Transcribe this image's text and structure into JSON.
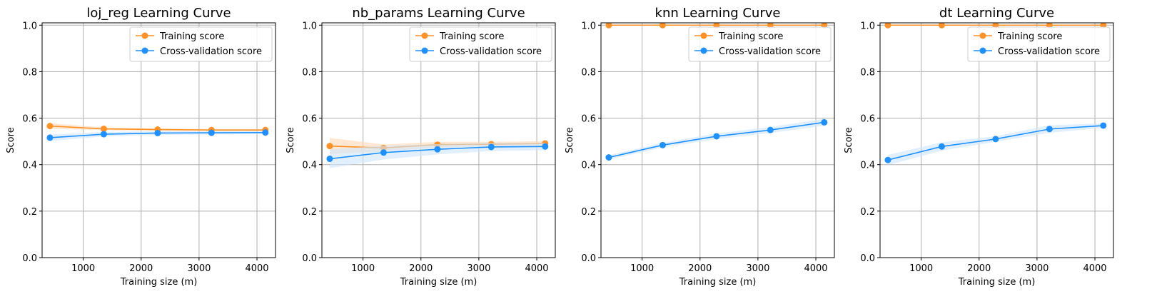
{
  "colors": {
    "training": "#ff9126",
    "cv": "#1e90ff",
    "training_band": "#ffd9b3",
    "cv_band": "#cfe6fb",
    "grid": "#b0b0b0"
  },
  "chart_data": [
    {
      "type": "line",
      "title": "loj_reg Learning Curve",
      "xlabel": "Training size (m)",
      "ylabel": "Score",
      "xlim": [
        290,
        4320
      ],
      "ylim": [
        0.0,
        1.01
      ],
      "xticks": [
        1000,
        2000,
        3000,
        4000
      ],
      "yticks": [
        0.0,
        0.2,
        0.4,
        0.6,
        0.8,
        1.0
      ],
      "yticklabels": [
        "0.0",
        "0.2",
        "0.4",
        "0.6",
        "0.8",
        "1.0"
      ],
      "grid": true,
      "legend": "top-right",
      "x": [
        425,
        1355,
        2285,
        3215,
        4145
      ],
      "series": [
        {
          "name": "Training score",
          "values": [
            0.566,
            0.554,
            0.551,
            0.549,
            0.549
          ],
          "std": [
            0.012,
            0.006,
            0.005,
            0.004,
            0.004
          ]
        },
        {
          "name": "Cross-validation score",
          "values": [
            0.516,
            0.531,
            0.536,
            0.537,
            0.538
          ],
          "std": [
            0.014,
            0.01,
            0.008,
            0.007,
            0.007
          ]
        }
      ]
    },
    {
      "type": "line",
      "title": "nb_params Learning Curve",
      "xlabel": "Training size (m)",
      "ylabel": "Score",
      "xlim": [
        290,
        4320
      ],
      "ylim": [
        0.0,
        1.01
      ],
      "xticks": [
        1000,
        2000,
        3000,
        4000
      ],
      "yticks": [
        0.0,
        0.2,
        0.4,
        0.6,
        0.8,
        1.0
      ],
      "yticklabels": [
        "0.0",
        "0.2",
        "0.4",
        "0.6",
        "0.8",
        "1.0"
      ],
      "grid": true,
      "legend": "top-right",
      "x": [
        425,
        1355,
        2285,
        3215,
        4145
      ],
      "series": [
        {
          "name": "Training score",
          "values": [
            0.48,
            0.472,
            0.486,
            0.488,
            0.491
          ],
          "std": [
            0.035,
            0.015,
            0.012,
            0.01,
            0.01
          ]
        },
        {
          "name": "Cross-validation score",
          "values": [
            0.425,
            0.452,
            0.466,
            0.476,
            0.478
          ],
          "std": [
            0.04,
            0.03,
            0.022,
            0.018,
            0.016
          ]
        }
      ]
    },
    {
      "type": "line",
      "title": "knn Learning Curve",
      "xlabel": "Training size (m)",
      "ylabel": "Score",
      "xlim": [
        290,
        4320
      ],
      "ylim": [
        0.0,
        1.01
      ],
      "xticks": [
        1000,
        2000,
        3000,
        4000
      ],
      "yticks": [
        0.0,
        0.2,
        0.4,
        0.6,
        0.8,
        1.0
      ],
      "yticklabels": [
        "0.0",
        "0.2",
        "0.4",
        "0.6",
        "0.8",
        "1.0"
      ],
      "grid": true,
      "legend": "top-right",
      "x": [
        425,
        1355,
        2285,
        3215,
        4145
      ],
      "series": [
        {
          "name": "Training score",
          "values": [
            1.0,
            1.0,
            1.0,
            1.0,
            1.0
          ],
          "std": [
            0,
            0,
            0,
            0,
            0
          ]
        },
        {
          "name": "Cross-validation score",
          "values": [
            0.431,
            0.484,
            0.522,
            0.549,
            0.582
          ],
          "std": [
            0.01,
            0.01,
            0.012,
            0.013,
            0.015
          ]
        }
      ]
    },
    {
      "type": "line",
      "title": "dt Learning Curve",
      "xlabel": "Training size (m)",
      "ylabel": "Score",
      "xlim": [
        290,
        4320
      ],
      "ylim": [
        0.0,
        1.01
      ],
      "xticks": [
        1000,
        2000,
        3000,
        4000
      ],
      "yticks": [
        0.0,
        0.2,
        0.4,
        0.6,
        0.8,
        1.0
      ],
      "yticklabels": [
        "0.0",
        "0.2",
        "0.4",
        "0.6",
        "0.8",
        "1.0"
      ],
      "grid": true,
      "legend": "top-right",
      "x": [
        425,
        1355,
        2285,
        3215,
        4145
      ],
      "series": [
        {
          "name": "Training score",
          "values": [
            1.0,
            1.0,
            1.0,
            1.0,
            1.0
          ],
          "std": [
            0,
            0,
            0,
            0,
            0
          ]
        },
        {
          "name": "Cross-validation score",
          "values": [
            0.42,
            0.478,
            0.51,
            0.553,
            0.568
          ],
          "std": [
            0.022,
            0.018,
            0.012,
            0.016,
            0.01
          ]
        }
      ]
    }
  ]
}
